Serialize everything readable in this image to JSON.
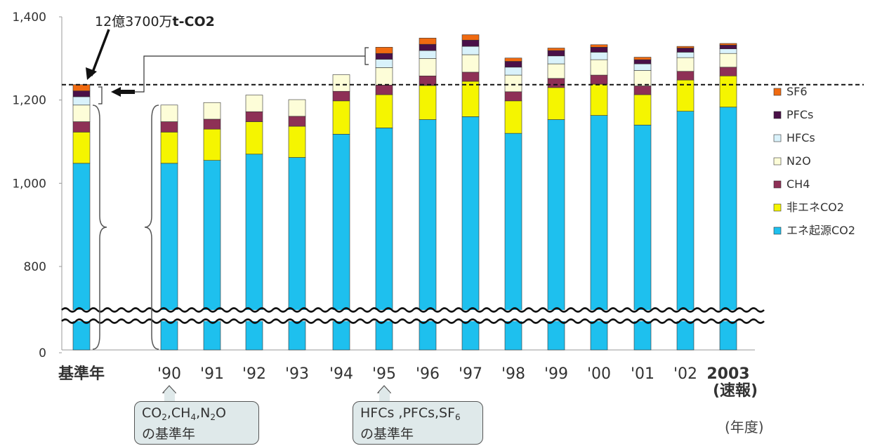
{
  "chart_data": {
    "type": "bar",
    "stacked": true,
    "categories": [
      "基準年",
      "'90",
      "'91",
      "'92",
      "'93",
      "'94",
      "'95",
      "'96",
      "'97",
      "'98",
      "'99",
      "'00",
      "'01",
      "'02",
      "2003"
    ],
    "category_sublabels": {
      "2003": "(速報)"
    },
    "category_colors": {
      "基準年": "#2a2ad0",
      "'90": "#4444cc",
      "'95": "#4444cc",
      "2003": "#e01020"
    },
    "series": [
      {
        "name": "エネ起源CO2",
        "color": "#1ec0ee",
        "values": [
          1048,
          1048,
          1055,
          1070,
          1062,
          1118,
          1133,
          1153,
          1160,
          1120,
          1153,
          1163,
          1140,
          1173,
          1183
        ]
      },
      {
        "name": "非エネCO2",
        "color": "#f5f500",
        "values": [
          75,
          75,
          75,
          78,
          75,
          80,
          80,
          82,
          85,
          78,
          77,
          75,
          73,
          75,
          75
        ]
      },
      {
        "name": "CH4",
        "color": "#8e3056",
        "values": [
          25,
          25,
          24,
          24,
          24,
          23,
          23,
          23,
          22,
          22,
          22,
          22,
          21,
          21,
          21
        ]
      },
      {
        "name": "N2O",
        "color": "#fdfdd8",
        "values": [
          40,
          40,
          40,
          40,
          40,
          40,
          42,
          42,
          42,
          40,
          35,
          37,
          37,
          33,
          33
        ]
      },
      {
        "name": "HFCs",
        "color": "#d9f2fb",
        "values": [
          20,
          0,
          0,
          0,
          0,
          0,
          20,
          19,
          20,
          19,
          19,
          18,
          16,
          13,
          11
        ]
      },
      {
        "name": "PFCs",
        "color": "#4a1048",
        "values": [
          14,
          0,
          0,
          0,
          0,
          0,
          14,
          15,
          15,
          14,
          13,
          12,
          10,
          10,
          9
        ]
      },
      {
        "name": "SF6",
        "color": "#f06a10",
        "values": [
          15,
          0,
          0,
          0,
          0,
          0,
          15,
          15,
          13,
          8,
          6,
          6,
          6,
          4,
          4
        ]
      }
    ],
    "yticks": [
      "0",
      "800",
      "1,000",
      "1,200",
      "1,400"
    ],
    "ylim": [
      600,
      1400
    ],
    "axis_break": true,
    "reference_line": 1237,
    "legend_placement": "right",
    "annotations": {
      "top_label_num": "12億3700万",
      "top_label_unit": "t-CO2",
      "unit_label": "(年度)",
      "callout_1": {
        "line1": [
          "CO",
          "2",
          ",CH",
          "4",
          ",N",
          "2",
          "O"
        ],
        "line2": "の基準年"
      },
      "callout_2": {
        "line1": [
          "HFCs ,PFCs,SF",
          "6"
        ],
        "line2": "の基準年"
      }
    }
  }
}
